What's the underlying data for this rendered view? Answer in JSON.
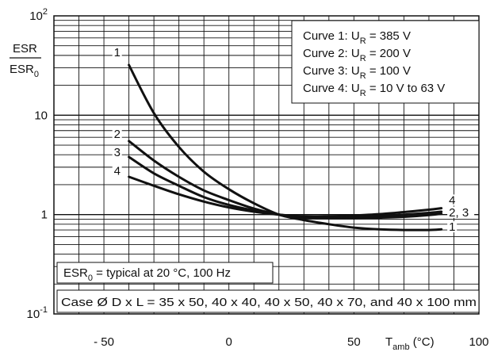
{
  "chart_data": {
    "type": "line",
    "y_scale": "log",
    "x_ticks": [
      "- 50",
      "0",
      "50",
      "100"
    ],
    "x_tick_values": [
      -50,
      0,
      50,
      100
    ],
    "y_ticks": [
      {
        "value": 100,
        "base": "10",
        "exp": "2"
      },
      {
        "value": 10,
        "base": "10",
        "exp": ""
      },
      {
        "value": 1,
        "base": "1",
        "exp": ""
      },
      {
        "value": 0.1,
        "base": "10",
        "exp": "-1"
      }
    ],
    "ylabel": {
      "num": "ESR",
      "den": "ESR",
      "den_sub": "0"
    },
    "xlabel": {
      "main": "T",
      "sub": "amb",
      "unit": " (°C)"
    },
    "xlim": [
      -70,
      100
    ],
    "ylim": [
      0.1,
      100
    ],
    "grid": true,
    "legend": [
      {
        "curve": "Curve 1: U",
        "sub": "R",
        "rest": " = 385 V"
      },
      {
        "curve": "Curve 2: U",
        "sub": "R",
        "rest": " = 200 V"
      },
      {
        "curve": "Curve 3: U",
        "sub": "R",
        "rest": " = 100 V"
      },
      {
        "curve": "Curve 4: U",
        "sub": "R",
        "rest": " = 10 V to 63 V"
      }
    ],
    "note_esr": {
      "main": "ESR",
      "sub": "0",
      "rest": " = typical at 20 °C, 100 Hz"
    },
    "note_case": "Case Ø D x L = 35 x 50, 40 x 40, 40 x 50, 40 x 70, and 40 x 100 mm",
    "series": [
      {
        "label": "1",
        "x": [
          -40,
          -30,
          -20,
          -10,
          0,
          10,
          20,
          30,
          40,
          50,
          60,
          70,
          80,
          85
        ],
        "y": [
          32,
          10.5,
          4.8,
          2.7,
          1.8,
          1.3,
          1.0,
          0.88,
          0.8,
          0.74,
          0.71,
          0.7,
          0.7,
          0.71
        ]
      },
      {
        "label": "2, 3",
        "x": [
          -40,
          -30,
          -20,
          -10,
          0,
          10,
          20,
          30,
          40,
          50,
          60,
          70,
          80,
          85
        ],
        "y": [
          5.5,
          3.5,
          2.4,
          1.75,
          1.4,
          1.15,
          1.0,
          0.93,
          0.92,
          0.92,
          0.93,
          0.95,
          0.99,
          1.02
        ]
      },
      {
        "label": "3",
        "x": [
          -40,
          -30,
          -20,
          -10,
          0,
          10,
          20,
          30,
          40,
          50,
          60,
          70,
          80,
          85
        ],
        "y": [
          3.8,
          2.6,
          1.95,
          1.5,
          1.25,
          1.1,
          1.0,
          0.94,
          0.94,
          0.95,
          0.97,
          1.0,
          1.04,
          1.07
        ]
      },
      {
        "label": "4",
        "x": [
          -40,
          -30,
          -20,
          -10,
          0,
          10,
          20,
          30,
          40,
          50,
          60,
          70,
          80,
          85
        ],
        "y": [
          2.4,
          1.95,
          1.6,
          1.35,
          1.18,
          1.07,
          1.0,
          0.96,
          0.96,
          0.98,
          1.01,
          1.06,
          1.12,
          1.16
        ]
      }
    ],
    "curve_labels": [
      "1",
      "2",
      "3",
      "4",
      "4",
      "2, 3",
      "1"
    ]
  }
}
